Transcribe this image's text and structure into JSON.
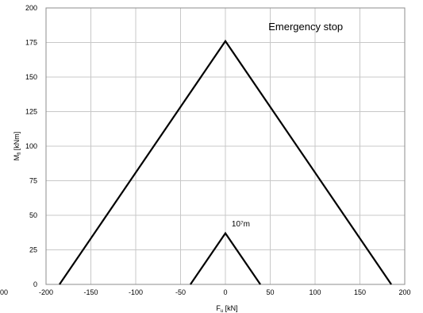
{
  "chart_data": {
    "type": "line",
    "xlabel_main": "F",
    "xlabel_sub": "u",
    "xlabel_unit": " [kN]",
    "ylabel_main": "M",
    "ylabel_sub": "fl",
    "ylabel_unit": " [kNm]",
    "xlim": [
      -200,
      200
    ],
    "ylim": [
      0,
      200
    ],
    "xticks": [
      -200,
      -150,
      -100,
      -50,
      0,
      50,
      100,
      150,
      200
    ],
    "yticks": [
      0,
      25,
      50,
      75,
      100,
      125,
      150,
      175,
      200
    ],
    "stray_label": "00",
    "grid": true,
    "series": [
      {
        "points": [
          [
            -185,
            0
          ],
          [
            0,
            176
          ],
          [
            185,
            0
          ]
        ]
      },
      {
        "points": [
          [
            -39,
            0
          ],
          [
            0,
            37
          ],
          [
            39,
            0
          ]
        ]
      }
    ],
    "annotations": [
      {
        "text": "Emergency stop",
        "x": 48,
        "y": 184,
        "size": "big"
      },
      {
        "text": "10⁷m",
        "x": 7,
        "y": 42,
        "size": "small"
      }
    ]
  }
}
